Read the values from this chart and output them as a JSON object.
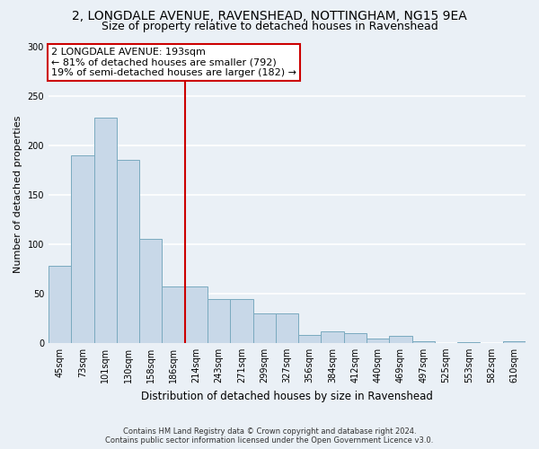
{
  "title1": "2, LONGDALE AVENUE, RAVENSHEAD, NOTTINGHAM, NG15 9EA",
  "title2": "Size of property relative to detached houses in Ravenshead",
  "xlabel": "Distribution of detached houses by size in Ravenshead",
  "ylabel": "Number of detached properties",
  "categories": [
    "45sqm",
    "73sqm",
    "101sqm",
    "130sqm",
    "158sqm",
    "186sqm",
    "214sqm",
    "243sqm",
    "271sqm",
    "299sqm",
    "327sqm",
    "356sqm",
    "384sqm",
    "412sqm",
    "440sqm",
    "469sqm",
    "497sqm",
    "525sqm",
    "553sqm",
    "582sqm",
    "610sqm"
  ],
  "values": [
    78,
    190,
    228,
    185,
    105,
    57,
    57,
    44,
    44,
    30,
    30,
    8,
    12,
    10,
    4,
    7,
    2,
    0,
    1,
    0,
    2
  ],
  "bar_color": "#c8d8e8",
  "bar_edge_color": "#7aaabf",
  "property_line_x": 5.5,
  "annotation_line1": "2 LONGDALE AVENUE: 193sqm",
  "annotation_line2": "← 81% of detached houses are smaller (792)",
  "annotation_line3": "19% of semi-detached houses are larger (182) →",
  "annotation_box_color": "#ffffff",
  "annotation_box_edge": "#cc0000",
  "vline_color": "#cc0000",
  "footer1": "Contains HM Land Registry data © Crown copyright and database right 2024.",
  "footer2": "Contains public sector information licensed under the Open Government Licence v3.0.",
  "ylim": [
    0,
    300
  ],
  "background_color": "#eaf0f6",
  "grid_color": "#ffffff",
  "title_fontsize": 10,
  "subtitle_fontsize": 9,
  "ylabel_fontsize": 8,
  "xlabel_fontsize": 8.5,
  "tick_fontsize": 7,
  "footer_fontsize": 6,
  "annotation_fontsize": 8
}
